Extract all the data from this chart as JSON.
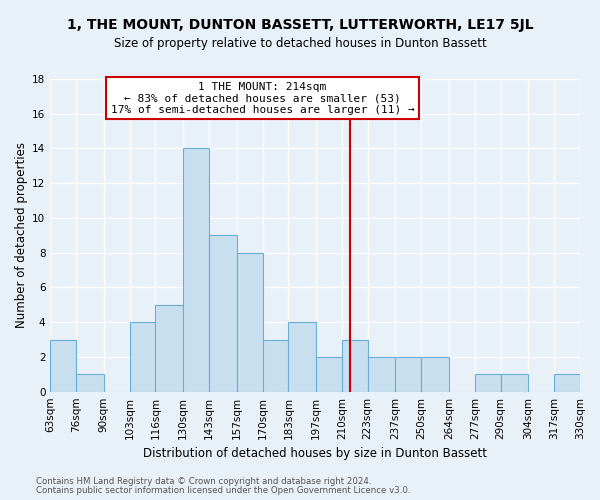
{
  "title": "1, THE MOUNT, DUNTON BASSETT, LUTTERWORTH, LE17 5JL",
  "subtitle": "Size of property relative to detached houses in Dunton Bassett",
  "xlabel": "Distribution of detached houses by size in Dunton Bassett",
  "ylabel": "Number of detached properties",
  "footnote1": "Contains HM Land Registry data © Crown copyright and database right 2024.",
  "footnote2": "Contains public sector information licensed under the Open Government Licence v3.0.",
  "bin_edges": [
    63,
    76,
    90,
    103,
    116,
    130,
    143,
    157,
    170,
    183,
    197,
    210,
    223,
    237,
    250,
    264,
    277,
    290,
    304,
    317,
    330
  ],
  "bin_labels": [
    "63sqm",
    "76sqm",
    "90sqm",
    "103sqm",
    "116sqm",
    "130sqm",
    "143sqm",
    "157sqm",
    "170sqm",
    "183sqm",
    "197sqm",
    "210sqm",
    "223sqm",
    "237sqm",
    "250sqm",
    "264sqm",
    "277sqm",
    "290sqm",
    "304sqm",
    "317sqm",
    "330sqm"
  ],
  "counts": [
    3,
    1,
    0,
    4,
    5,
    14,
    9,
    8,
    3,
    4,
    2,
    3,
    2,
    2,
    2,
    0,
    1,
    1,
    0,
    1
  ],
  "bar_color": "#c8dff0",
  "bar_edge_color": "#6aaed6",
  "vline_x": 214,
  "vline_color": "#cc0000",
  "annotation_title": "1 THE MOUNT: 214sqm",
  "annotation_line1": "← 83% of detached houses are smaller (53)",
  "annotation_line2": "17% of semi-detached houses are larger (11) →",
  "annotation_box_color": "#ffffff",
  "annotation_box_edge": "#cc0000",
  "ylim": [
    0,
    18
  ],
  "yticks": [
    0,
    2,
    4,
    6,
    8,
    10,
    12,
    14,
    16,
    18
  ],
  "background_color": "#e8f0f8",
  "plot_background": "#e8f0f8",
  "grid_color": "#ffffff",
  "title_fontsize": 10,
  "subtitle_fontsize": 8.5,
  "axis_label_fontsize": 8.5,
  "tick_fontsize": 7.5,
  "annotation_fontsize": 8.0
}
